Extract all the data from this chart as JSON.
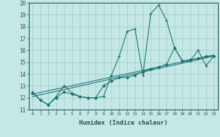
{
  "xlabel": "Humidex (Indice chaleur)",
  "bg_color": "#c5e8e5",
  "grid_color": "#9ecece",
  "line_color": "#1a7070",
  "xlim": [
    -0.5,
    23.5
  ],
  "ylim": [
    11,
    20
  ],
  "yticks": [
    11,
    12,
    13,
    14,
    15,
    16,
    17,
    18,
    19,
    20
  ],
  "xticks": [
    0,
    1,
    2,
    3,
    4,
    5,
    6,
    7,
    8,
    9,
    10,
    11,
    12,
    13,
    14,
    15,
    16,
    17,
    18,
    19,
    20,
    21,
    22,
    23
  ],
  "line1_x": [
    0,
    1,
    2,
    3,
    4,
    5,
    6,
    7,
    8,
    9,
    10,
    11,
    12,
    13,
    14,
    15,
    16,
    17,
    18,
    19,
    20,
    21,
    22,
    23
  ],
  "line1_y": [
    12.5,
    11.8,
    11.4,
    12.1,
    13.0,
    12.4,
    12.1,
    12.0,
    12.0,
    12.1,
    13.9,
    15.5,
    17.6,
    17.8,
    13.9,
    19.1,
    19.8,
    18.5,
    16.2,
    15.1,
    15.1,
    16.0,
    14.7,
    15.5
  ],
  "line2_x": [
    0,
    1,
    2,
    3,
    4,
    5,
    6,
    7,
    8,
    9,
    10,
    11,
    12,
    13,
    14,
    15,
    16,
    17,
    18,
    19,
    20,
    21,
    22,
    23
  ],
  "line2_y": [
    12.4,
    11.8,
    11.4,
    12.0,
    12.5,
    12.3,
    12.1,
    12.0,
    12.0,
    13.0,
    13.4,
    13.7,
    13.7,
    13.9,
    14.2,
    14.4,
    14.6,
    14.8,
    16.2,
    15.1,
    15.2,
    15.3,
    15.5,
    15.5
  ],
  "line3_x": [
    0,
    23
  ],
  "line3_y": [
    12.1,
    15.5
  ],
  "line4_x": [
    0,
    23
  ],
  "line4_y": [
    12.3,
    15.6
  ]
}
